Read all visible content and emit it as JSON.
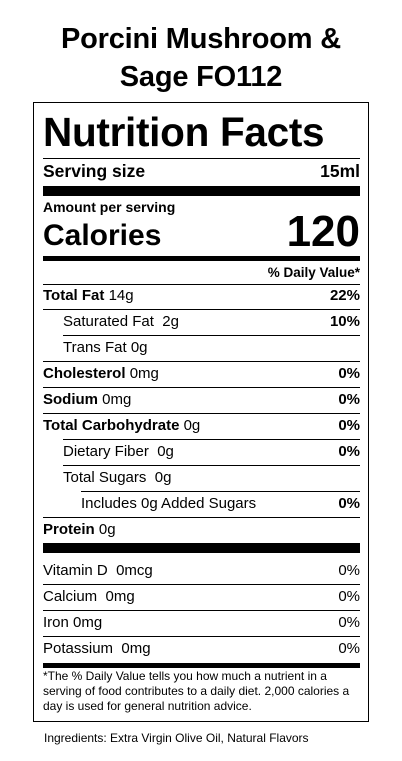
{
  "product": {
    "title_line1": "Porcini Mushroom &",
    "title_line2": "Sage FO112"
  },
  "label": {
    "heading": "Nutrition Facts",
    "serving_size_label": "Serving size",
    "serving_size_value": "15ml",
    "amount_per_serving": "Amount per serving",
    "calories_label": "Calories",
    "calories_value": "120",
    "daily_value_header": "% Daily Value*",
    "nutrients": [
      {
        "name": "Total Fat",
        "amount": "14g",
        "dv": "22%"
      },
      {
        "name": "Saturated Fat",
        "amount": "2g",
        "dv": "10%"
      },
      {
        "name": "Trans Fat",
        "amount": "0g",
        "dv": ""
      },
      {
        "name": "Cholesterol",
        "amount": "0mg",
        "dv": "0%"
      },
      {
        "name": "Sodium",
        "amount": "0mg",
        "dv": "0%"
      },
      {
        "name": "Total Carbohydrate",
        "amount": "0g",
        "dv": "0%"
      },
      {
        "name": "Dietary Fiber",
        "amount": "0g",
        "dv": "0%"
      },
      {
        "name": "Total Sugars",
        "amount": "0g",
        "dv": ""
      },
      {
        "name": "Includes 0g Added Sugars",
        "amount": "",
        "dv": "0%"
      },
      {
        "name": "Protein",
        "amount": "0g",
        "dv": ""
      }
    ],
    "vitamins": [
      {
        "name": "Vitamin D",
        "amount": "0mcg",
        "dv": "0%"
      },
      {
        "name": "Calcium",
        "amount": "0mg",
        "dv": "0%"
      },
      {
        "name": "Iron",
        "amount": "0mg",
        "dv": "0%"
      },
      {
        "name": "Potassium",
        "amount": "0mg",
        "dv": "0%"
      }
    ],
    "footnote": "*The % Daily Value tells you how much a nutrient in a serving of food contributes to a daily diet. 2,000 calories a day is used for general nutrition advice."
  },
  "ingredients": "Ingredients: Extra Virgin Olive Oil, Natural Flavors"
}
